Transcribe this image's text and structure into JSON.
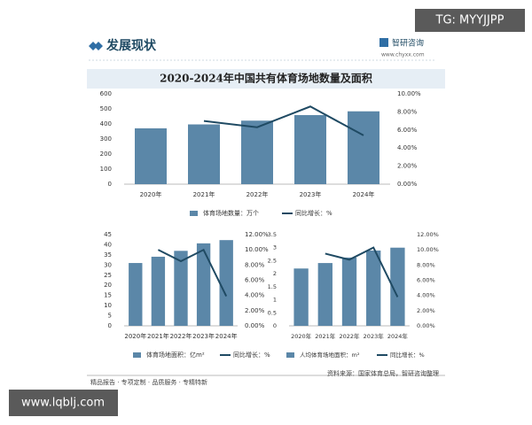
{
  "header": {
    "title": "发展现状",
    "brand": "智研咨询",
    "url": "www.chyxx.com",
    "tag": "TG: MYYJJPP"
  },
  "footer": {
    "slogan": "精品报告 · 专项定制 · 品质服务 · 专精特新",
    "source": "资料来源：国家体育总局，智研咨询整理",
    "site": "www.lqblj.com"
  },
  "chart_data": [
    {
      "type": "combo",
      "title": "2020-2024年中国共有体育场地数量及面积",
      "categories": [
        "2020年",
        "2021年",
        "2022年",
        "2023年",
        "2024年"
      ],
      "series": [
        {
          "name": "体育场地数量：万个",
          "type": "bar",
          "color": "#5b87a8",
          "values": [
            371,
            397,
            422,
            459,
            484
          ]
        },
        {
          "name": "同比增长：%",
          "type": "line",
          "axis": "y2",
          "color": "#1f4a63",
          "values": [
            null,
            7.0,
            6.3,
            8.6,
            5.4
          ]
        }
      ],
      "ylim": [
        0,
        600
      ],
      "yticks": [
        0,
        100,
        200,
        300,
        400,
        500,
        600
      ],
      "y2lim": [
        0,
        10
      ],
      "y2ticks": [
        {
          "value": 0,
          "label": "0.00%"
        },
        {
          "value": 2,
          "label": "2.00%"
        },
        {
          "value": 4,
          "label": "4.00%"
        },
        {
          "value": 6,
          "label": "6.00%"
        },
        {
          "value": 8,
          "label": "8.00%"
        },
        {
          "value": 10,
          "label": "10.00%"
        }
      ]
    },
    {
      "type": "combo",
      "categories": [
        "2020年",
        "2021年",
        "2022年",
        "2023年",
        "2024年"
      ],
      "series": [
        {
          "name": "体育场地面积：亿m²",
          "type": "bar",
          "color": "#5b87a8",
          "values": [
            31.0,
            34.1,
            37.0,
            40.7,
            42.3
          ]
        },
        {
          "name": "同比增长：%",
          "type": "line",
          "axis": "y2",
          "color": "#1f4a63",
          "values": [
            null,
            10.0,
            8.5,
            10.0,
            3.9
          ]
        }
      ],
      "ylim": [
        0,
        45
      ],
      "yticks": [
        0,
        5,
        10,
        15,
        20,
        25,
        30,
        35,
        40,
        45
      ],
      "y2lim": [
        0,
        12
      ],
      "y2ticks": [
        {
          "value": 0,
          "label": "0.00%"
        },
        {
          "value": 2,
          "label": "2.00%"
        },
        {
          "value": 4,
          "label": "4.00%"
        },
        {
          "value": 6,
          "label": "6.00%"
        },
        {
          "value": 8,
          "label": "8.00%"
        },
        {
          "value": 10,
          "label": "10.00%"
        },
        {
          "value": 12,
          "label": "12.00%"
        }
      ]
    },
    {
      "type": "combo",
      "categories": [
        "2020年",
        "2021年",
        "2022年",
        "2023年",
        "2024年"
      ],
      "series": [
        {
          "name": "人均体育场地面积：m²",
          "type": "bar",
          "color": "#5b87a8",
          "values": [
            2.2,
            2.41,
            2.62,
            2.89,
            3.0
          ]
        },
        {
          "name": "同比增长：%",
          "type": "line",
          "axis": "y2",
          "color": "#1f4a63",
          "values": [
            null,
            9.5,
            8.7,
            10.3,
            3.8
          ]
        }
      ],
      "ylim": [
        0,
        3.5
      ],
      "yticks": [
        0,
        0.5,
        1,
        1.5,
        2,
        2.5,
        3,
        3.5
      ],
      "y2lim": [
        0,
        12
      ],
      "y2ticks": [
        {
          "value": 0,
          "label": "0.00%"
        },
        {
          "value": 2,
          "label": "2.00%"
        },
        {
          "value": 4,
          "label": "4.00%"
        },
        {
          "value": 6,
          "label": "6.00%"
        },
        {
          "value": 8,
          "label": "8.00%"
        },
        {
          "value": 10,
          "label": "10.00%"
        },
        {
          "value": 12,
          "label": "12.00%"
        }
      ]
    }
  ]
}
